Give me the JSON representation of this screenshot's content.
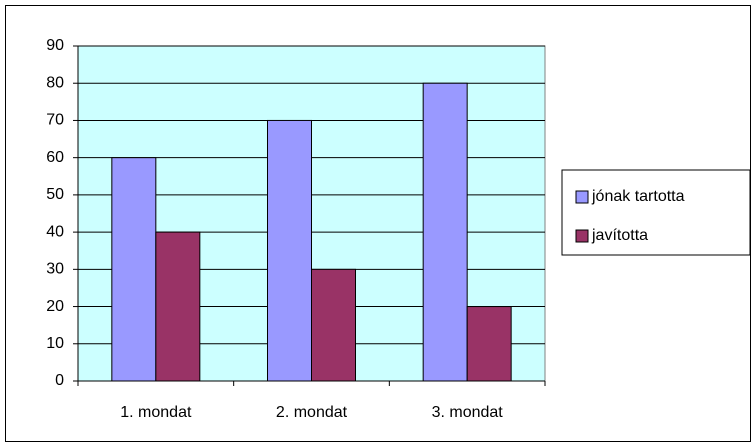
{
  "chart_data": {
    "type": "bar",
    "categories": [
      "1. mondat",
      "2. mondat",
      "3. mondat"
    ],
    "series": [
      {
        "name": "jónak tartotta",
        "color": "#9999ff",
        "values": [
          60,
          70,
          80
        ]
      },
      {
        "name": "javította",
        "color": "#993366",
        "values": [
          40,
          30,
          20
        ]
      }
    ],
    "ylim": [
      0,
      90
    ],
    "yticks": [
      0,
      10,
      20,
      30,
      40,
      50,
      60,
      70,
      80,
      90
    ],
    "grid": true,
    "legend": "right",
    "plot_background": "#ccffff"
  }
}
